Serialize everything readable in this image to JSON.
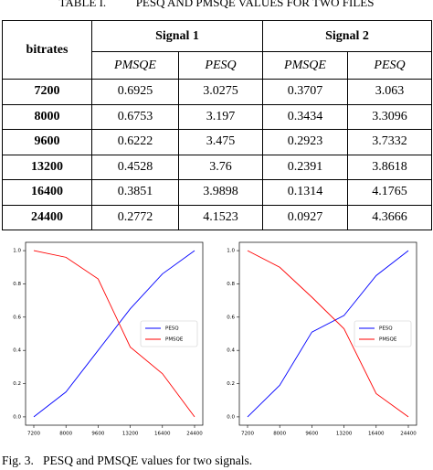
{
  "table": {
    "label": "TABLE I.",
    "title": "PESQ AND PMSQE VALUES FOR TWO FILES",
    "columns": [
      "bitrates",
      "Signal 1",
      "Signal 2"
    ],
    "subcolumns": [
      "PMSQE",
      "PESQ",
      "PMSQE",
      "PESQ"
    ],
    "rows": [
      [
        7200,
        0.6925,
        3.0275,
        0.3707,
        3.063
      ],
      [
        8000,
        0.6753,
        3.197,
        0.3434,
        3.3096
      ],
      [
        9600,
        0.6222,
        3.475,
        0.2923,
        3.7332
      ],
      [
        13200,
        0.4528,
        3.76,
        0.2391,
        3.8618
      ],
      [
        16400,
        0.3851,
        3.9898,
        0.1314,
        4.1765
      ],
      [
        24400,
        0.2772,
        4.1523,
        0.0927,
        4.3666
      ]
    ]
  },
  "chart_data": [
    {
      "type": "line",
      "categories": [
        "7200",
        "8000",
        "9600",
        "13200",
        "16400",
        "24400"
      ],
      "series": [
        {
          "name": "PESQ",
          "color": "#0000ff",
          "values": [
            0,
            0.15,
            0.4,
            0.65,
            0.86,
            1
          ]
        },
        {
          "name": "PMSQE",
          "color": "#ff0000",
          "values": [
            1,
            0.96,
            0.83,
            0.42,
            0.26,
            0
          ]
        }
      ],
      "ylim": [
        -0.05,
        1.05
      ],
      "yticks": [
        {
          "value": 0,
          "label": "0.0"
        },
        0.2,
        0.4,
        0.6,
        0.8,
        {
          "value": 1,
          "label": "1.0"
        }
      ],
      "legend": "center right"
    },
    {
      "type": "line",
      "categories": [
        "7200",
        "8000",
        "9600",
        "13200",
        "16400",
        "24400"
      ],
      "series": [
        {
          "name": "PESQ",
          "color": "#0000ff",
          "values": [
            0,
            0.19,
            0.51,
            0.61,
            0.85,
            1
          ]
        },
        {
          "name": "PMSQE",
          "color": "#ff0000",
          "values": [
            1,
            0.9,
            0.72,
            0.53,
            0.14,
            0
          ]
        }
      ],
      "ylim": [
        -0.05,
        1.05
      ],
      "yticks": [
        {
          "value": 0,
          "label": "0.0"
        },
        0.2,
        0.4,
        0.6,
        0.8,
        {
          "value": 1,
          "label": "1.0"
        }
      ],
      "legend": "center right"
    }
  ],
  "figure_caption": {
    "label": "Fig. 3.",
    "text": "PESQ and PMSQE values for two signals."
  }
}
